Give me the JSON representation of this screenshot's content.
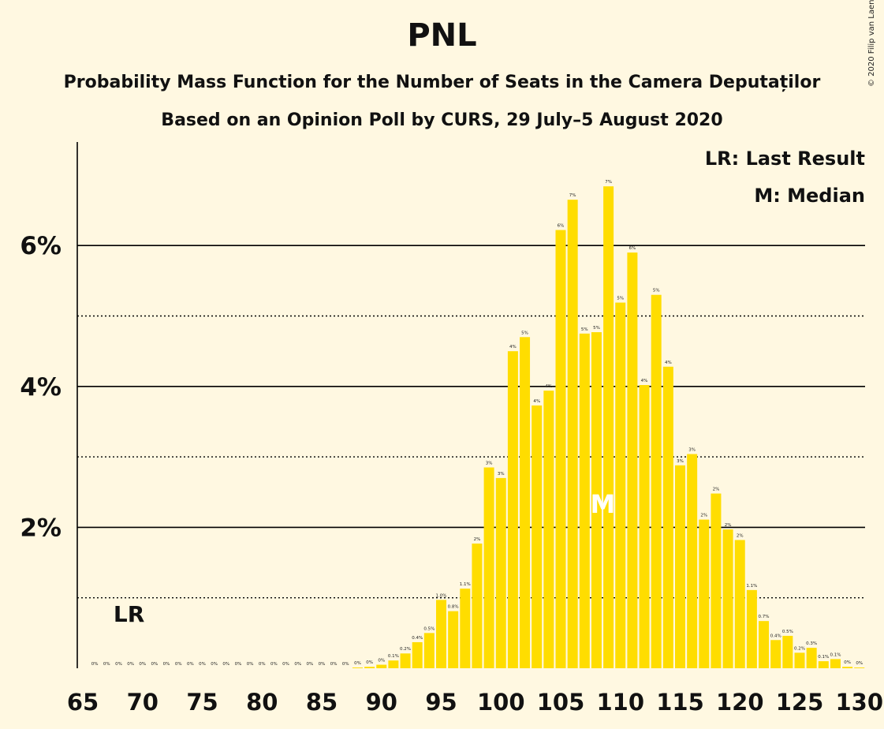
{
  "chart_data": {
    "type": "bar",
    "title": "PNL",
    "subtitle": "Probability Mass Function for the Number of Seats in the Camera Deputaților",
    "subtitle2": "Based on an Opinion Poll by CURS, 29 July–5 August 2020",
    "copyright": "© 2020 Filip van Laenen",
    "legend": [
      "LR: Last Result",
      "M: Median"
    ],
    "legend_position": "top-right",
    "last_result_label": "LR",
    "last_result_seat": 69,
    "median_label": "M",
    "median_seat": 108,
    "xlim": [
      65,
      130
    ],
    "ylim": [
      0,
      7.4
    ],
    "x_ticks": [
      65,
      70,
      75,
      80,
      85,
      90,
      95,
      100,
      105,
      110,
      115,
      120,
      125,
      130
    ],
    "x_tick_labels": [
      "65",
      "70",
      "75",
      "80",
      "85",
      "90",
      "95",
      "100",
      "105",
      "110",
      "115",
      "120",
      "125",
      "130"
    ],
    "y_ticks_labeled": [
      2,
      4,
      6
    ],
    "y_tick_labels": [
      "2%",
      "4%",
      "6%"
    ],
    "y_gridlines_solid": [
      2,
      4,
      6
    ],
    "y_gridlines_dotted": [
      1,
      3,
      5
    ],
    "bar_color": "#ffdd00",
    "seats": [
      66,
      67,
      68,
      69,
      70,
      71,
      72,
      73,
      74,
      75,
      76,
      77,
      78,
      79,
      80,
      81,
      82,
      83,
      84,
      85,
      86,
      87,
      88,
      89,
      90,
      91,
      92,
      93,
      94,
      95,
      96,
      97,
      98,
      99,
      100,
      101,
      102,
      103,
      104,
      105,
      106,
      107,
      108,
      109,
      110,
      111,
      112,
      113,
      114,
      115,
      116,
      117,
      118,
      119,
      120,
      121,
      122,
      123,
      124,
      125,
      126,
      127,
      128,
      129,
      130
    ],
    "values": [
      0,
      0,
      0,
      0,
      0,
      0,
      0,
      0,
      0,
      0,
      0,
      0,
      0,
      0,
      0,
      0,
      0,
      0,
      0,
      0,
      0,
      0,
      0.01,
      0.02,
      0.05,
      0.11,
      0.21,
      0.37,
      0.5,
      0.97,
      0.81,
      1.13,
      1.77,
      2.85,
      2.7,
      4.5,
      4.7,
      3.73,
      3.94,
      6.22,
      6.65,
      4.75,
      4.77,
      6.84,
      5.19,
      5.9,
      4.02,
      5.3,
      4.28,
      2.88,
      3.04,
      2.11,
      2.48,
      1.97,
      1.82,
      1.11,
      0.67,
      0.4,
      0.46,
      0.22,
      0.29,
      0.1,
      0.13,
      0.02,
      0.01
    ],
    "data_labels": [
      "0%",
      "0%",
      "0%",
      "0%",
      "0%",
      "0%",
      "0%",
      "0%",
      "0%",
      "0%",
      "0%",
      "0%",
      "0%",
      "0%",
      "0%",
      "0%",
      "0%",
      "0%",
      "0%",
      "0%",
      "0%",
      "0%",
      "0%",
      "0%",
      "0%",
      "0.1%",
      "0.2%",
      "0.4%",
      "0.5%",
      "1.0%",
      "0.8%",
      "1.1%",
      "2%",
      "3%",
      "3%",
      "4%",
      "5%",
      "4%",
      "4%",
      "6%",
      "7%",
      "5%",
      "5%",
      "7%",
      "5%",
      "6%",
      "4%",
      "5%",
      "4%",
      "3%",
      "3%",
      "2%",
      "2%",
      "2%",
      "2%",
      "1.1%",
      "0.7%",
      "0.4%",
      "0.5%",
      "0.2%",
      "0.3%",
      "0.1%",
      "0.1%",
      "0%",
      "0%"
    ]
  }
}
